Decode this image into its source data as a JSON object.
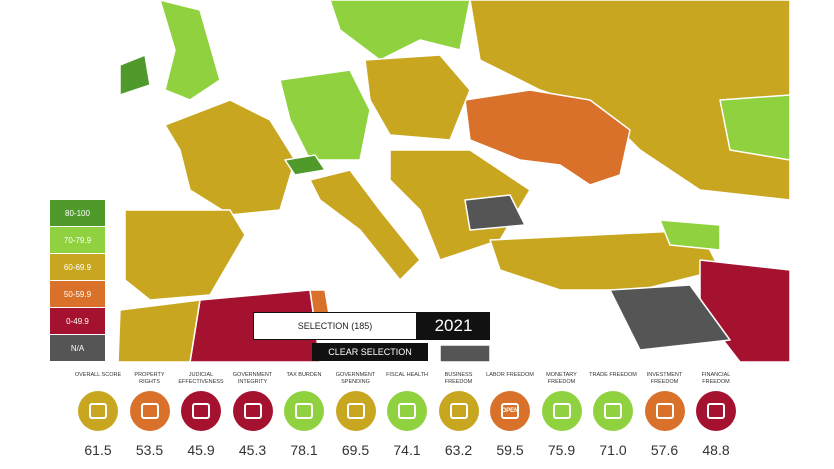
{
  "legend": [
    {
      "label": "80-100",
      "color": "#4f9a2a"
    },
    {
      "label": "70-79.9",
      "color": "#8fd13f"
    },
    {
      "label": "60-69.9",
      "color": "#c9a620"
    },
    {
      "label": "50-59.9",
      "color": "#d9712a"
    },
    {
      "label": "0-49.9",
      "color": "#a5122f"
    },
    {
      "label": "N/A",
      "color": "#555555"
    }
  ],
  "selection": {
    "label": "SELECTION (185)",
    "year": "2021",
    "clear_button": "CLEAR SELECTION"
  },
  "indicators": [
    {
      "label": "OVERALL SCORE",
      "value": "61.5",
      "color": "#c9a620"
    },
    {
      "label": "PROPERTY RIGHTS",
      "value": "53.5",
      "color": "#d9712a"
    },
    {
      "label": "JUDICIAL EFFECTIVENESS",
      "value": "45.9",
      "color": "#a5122f"
    },
    {
      "label": "GOVERNMENT INTEGRITY",
      "value": "45.3",
      "color": "#a5122f"
    },
    {
      "label": "TAX BURDEN",
      "value": "78.1",
      "color": "#8fd13f"
    },
    {
      "label": "GOVERNMENT SPENDING",
      "value": "69.5",
      "color": "#c9a620"
    },
    {
      "label": "FISCAL HEALTH",
      "value": "74.1",
      "color": "#8fd13f"
    },
    {
      "label": "BUSINESS FREEDOM",
      "value": "63.2",
      "color": "#c9a620"
    },
    {
      "label": "LABOR FREEDOM",
      "value": "59.5",
      "color": "#d9712a",
      "icon_label": "OPEN"
    },
    {
      "label": "MONETARY FREEDOM",
      "value": "75.9",
      "color": "#8fd13f"
    },
    {
      "label": "TRADE FREEDOM",
      "value": "71.0",
      "color": "#8fd13f"
    },
    {
      "label": "INVESTMENT FREEDOM",
      "value": "57.6",
      "color": "#d9712a"
    },
    {
      "label": "FINANCIAL FREEDOM",
      "value": "48.8",
      "color": "#a5122f"
    }
  ]
}
